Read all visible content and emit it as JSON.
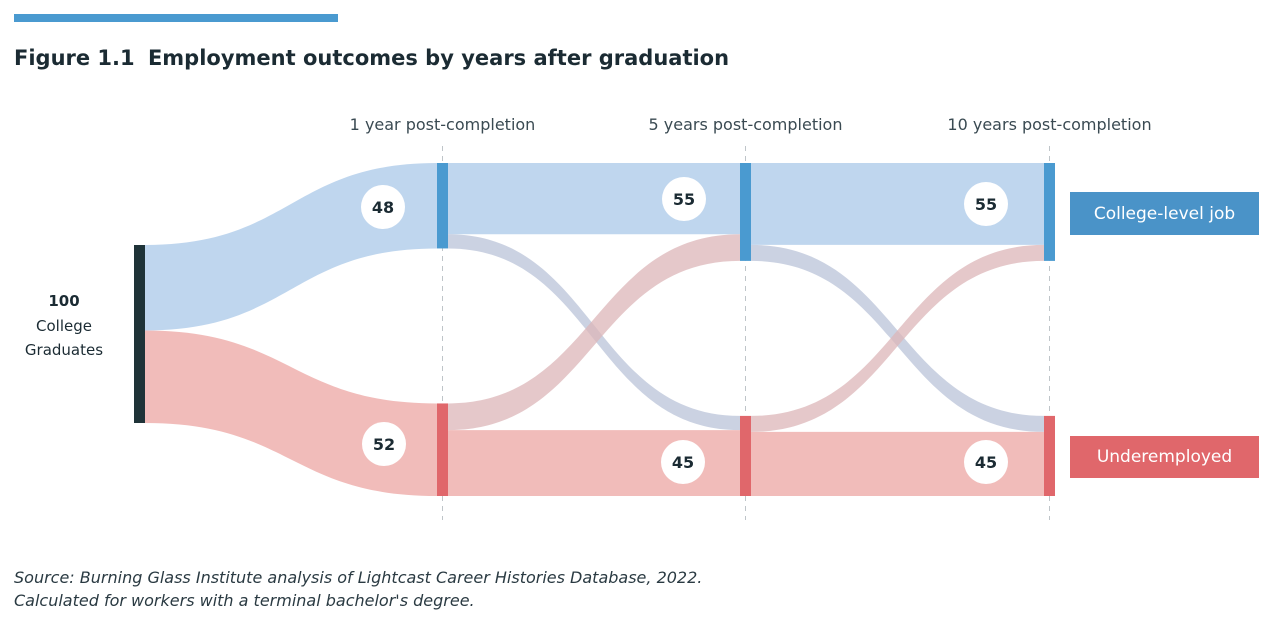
{
  "header": {
    "figure_number": "Figure 1.1",
    "title": "Employment outcomes by years after graduation"
  },
  "source": {
    "line1": "Source: Burning Glass Institute analysis of Lightcast Career Histories Database, 2022.",
    "line2": "Calculated for workers with a terminal bachelor's degree."
  },
  "legend": {
    "college": "College-level job",
    "under": "Underemployed"
  },
  "colors": {
    "accent_bar": "#4a9ad0",
    "source_node": "#1f3338",
    "college_node": "#4a9ad0",
    "under_node": "#e0676b",
    "college_flow": "#b8d2ec",
    "under_flow": "#f0b5b2",
    "cross_flow": "#c9bfcd",
    "legend_college": "#4a93c8",
    "legend_under": "#e0676b"
  },
  "chart_data": {
    "type": "sankey",
    "title": "Employment outcomes by years after graduation",
    "source_node": {
      "value": 100,
      "label_line1": "College",
      "label_line2": "Graduates"
    },
    "columns": [
      "1 year post-completion",
      "5 years post-completion",
      "10 years post-completion"
    ],
    "categories": [
      "College-level job",
      "Underemployed"
    ],
    "nodes": [
      {
        "stage": 1,
        "college": 48,
        "under": 52
      },
      {
        "stage": 2,
        "college": 55,
        "under": 45
      },
      {
        "stage": 3,
        "college": 55,
        "under": 45
      }
    ],
    "flows": [
      {
        "from_stage": 0,
        "to_stage": 1,
        "from": "graduates",
        "to": "college",
        "value": 48
      },
      {
        "from_stage": 0,
        "to_stage": 1,
        "from": "graduates",
        "to": "under",
        "value": 52
      },
      {
        "from_stage": 1,
        "to_stage": 2,
        "from": "college",
        "to": "college",
        "value": 40
      },
      {
        "from_stage": 1,
        "to_stage": 2,
        "from": "college",
        "to": "under",
        "value": 8
      },
      {
        "from_stage": 1,
        "to_stage": 2,
        "from": "under",
        "to": "college",
        "value": 15
      },
      {
        "from_stage": 1,
        "to_stage": 2,
        "from": "under",
        "to": "under",
        "value": 37
      },
      {
        "from_stage": 2,
        "to_stage": 3,
        "from": "college",
        "to": "college",
        "value": 46
      },
      {
        "from_stage": 2,
        "to_stage": 3,
        "from": "college",
        "to": "under",
        "value": 9
      },
      {
        "from_stage": 2,
        "to_stage": 3,
        "from": "under",
        "to": "college",
        "value": 9
      },
      {
        "from_stage": 2,
        "to_stage": 3,
        "from": "under",
        "to": "under",
        "value": 36
      }
    ]
  }
}
